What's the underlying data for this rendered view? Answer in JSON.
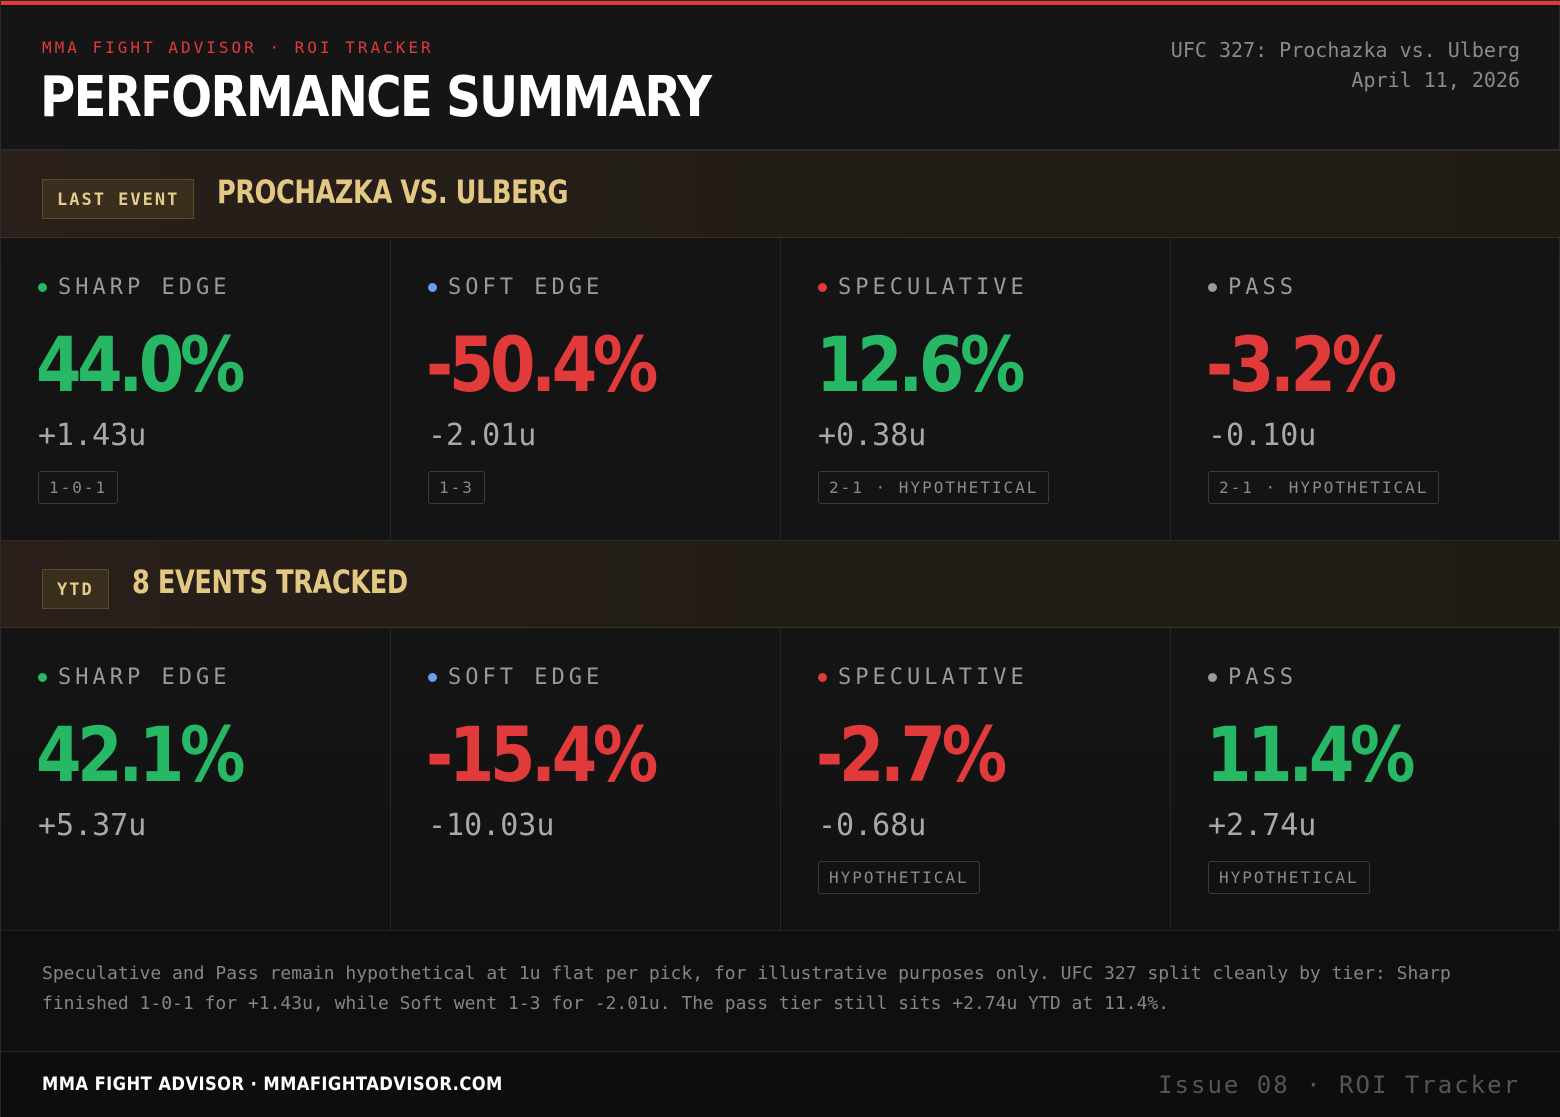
{
  "colors": {
    "accent": "#e03a3a",
    "green": "#26b865",
    "red": "#e03a3a",
    "blue": "#6f9cf0",
    "grey": "#9a9a9a",
    "gold": "#e3c884"
  },
  "header": {
    "kicker": "MMA FIGHT ADVISOR · ROI TRACKER",
    "title": "PERFORMANCE SUMMARY",
    "event_name": "UFC 327: Prochazka vs. Ulberg",
    "event_date": "April 11, 2026"
  },
  "last_event": {
    "badge": "LAST EVENT",
    "title": "PROCHAZKA VS. ULBERG",
    "tiers": [
      {
        "label": "SHARP EDGE",
        "dot": "green",
        "roi": "44.0%",
        "roi_color": "green",
        "units": "+1.43u",
        "record": "1-0-1"
      },
      {
        "label": "SOFT EDGE",
        "dot": "blue",
        "roi": "-50.4%",
        "roi_color": "red",
        "units": "-2.01u",
        "record": "1-3"
      },
      {
        "label": "SPECULATIVE",
        "dot": "red",
        "roi": "12.6%",
        "roi_color": "green",
        "units": "+0.38u",
        "record": "2-1 · HYPOTHETICAL"
      },
      {
        "label": "PASS",
        "dot": "grey",
        "roi": "-3.2%",
        "roi_color": "red",
        "units": "-0.10u",
        "record": "2-1 · HYPOTHETICAL"
      }
    ]
  },
  "ytd": {
    "badge": "YTD",
    "title": "8 EVENTS TRACKED",
    "tiers": [
      {
        "label": "SHARP EDGE",
        "dot": "green",
        "roi": "42.1%",
        "roi_color": "green",
        "units": "+5.37u",
        "record": ""
      },
      {
        "label": "SOFT EDGE",
        "dot": "blue",
        "roi": "-15.4%",
        "roi_color": "red",
        "units": "-10.03u",
        "record": ""
      },
      {
        "label": "SPECULATIVE",
        "dot": "red",
        "roi": "-2.7%",
        "roi_color": "red",
        "units": "-0.68u",
        "record": "HYPOTHETICAL"
      },
      {
        "label": "PASS",
        "dot": "grey",
        "roi": "11.4%",
        "roi_color": "green",
        "units": "+2.74u",
        "record": "HYPOTHETICAL"
      }
    ]
  },
  "note": "Speculative and Pass remain hypothetical at 1u flat per pick, for illustrative purposes only. UFC 327 split cleanly by tier: Sharp finished 1-0-1 for +1.43u, while Soft went 1-3 for -2.01u. The pass tier still sits +2.74u YTD at 11.4%.",
  "footer": {
    "brand": "MMA FIGHT ADVISOR · MMAFIGHTADVISOR.COM",
    "issue": "Issue 08 · ROI Tracker"
  }
}
